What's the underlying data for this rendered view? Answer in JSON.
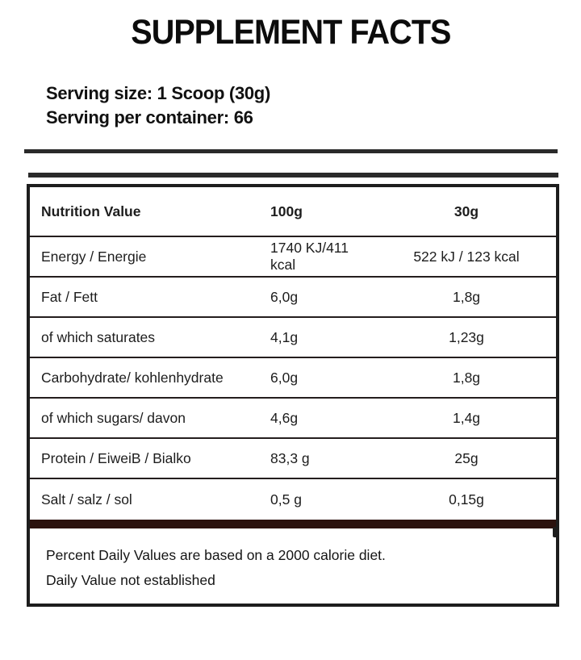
{
  "label": {
    "title": "SUPPLEMENT FACTS",
    "serving": {
      "size_line": "Serving size: 1 Scoop (30g)",
      "container_line": "Serving per container: 66"
    },
    "table": {
      "header": {
        "label": "Nutrition Value",
        "col_100g": "100g",
        "col_30g": "30g"
      },
      "rows": [
        {
          "label": "Energy / Energie",
          "per_100g": "1740 KJ/411 kcal",
          "per_30g": "522 kJ / 123 kcal"
        },
        {
          "label": "Fat / Fett",
          "per_100g": "6,0g",
          "per_30g": "1,8g"
        },
        {
          "label": "of which saturates",
          "per_100g": "4,1g",
          "per_30g": "1,23g"
        },
        {
          "label": "Carbohydrate/ kohlenhydrate",
          "per_100g": "6,0g",
          "per_30g": "1,8g"
        },
        {
          "label": "of which sugars/ davon",
          "per_100g": "4,6g",
          "per_30g": "1,4g"
        },
        {
          "label": "Protein / EiweiB / Bialko",
          "per_100g": "83,3 g",
          "per_30g": "25g"
        },
        {
          "label": "Salt / salz / sol",
          "per_100g": "0,5 g",
          "per_30g": "0,15g"
        }
      ]
    },
    "footnotes": [
      "Percent Daily Values are based on a 2000 calorie diet.",
      "Daily Value not established"
    ],
    "colors": {
      "ink": "#1d1d1d",
      "title_ink": "#0c0c0c",
      "top_rules": "#2a2a2a",
      "row_separator": "#241d1d",
      "divider_bar": "#2b120e",
      "background": "#ffffff"
    }
  }
}
